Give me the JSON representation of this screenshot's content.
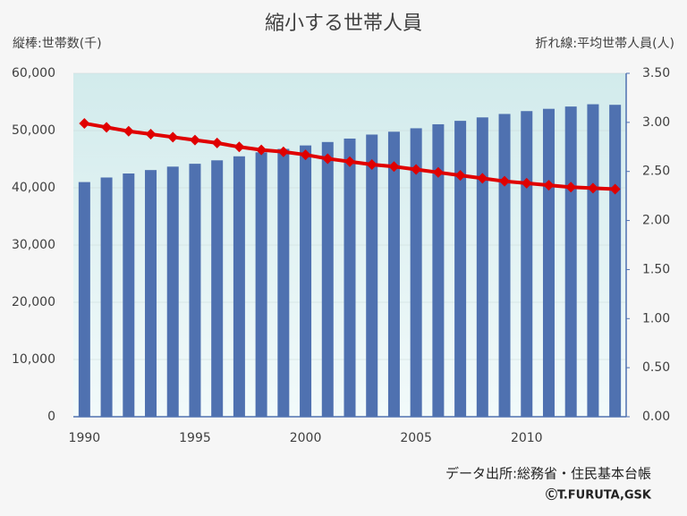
{
  "chart_data": {
    "type": "bar-line",
    "title": "縮小する世帯人員",
    "y_label": "縦棒:世帯数(千)",
    "y2_label": "折れ線:平均世帯人員(人)",
    "source": "データ出所:総務省・住民基本台帳",
    "credit": "ⒸT.FURUTA,GSK",
    "categories": [
      "1990",
      null,
      null,
      null,
      null,
      "1995",
      null,
      null,
      null,
      null,
      "2000",
      null,
      null,
      null,
      null,
      "2005",
      null,
      null,
      null,
      null,
      "2010",
      null,
      null,
      null,
      null
    ],
    "series": [
      {
        "type": "bar",
        "color": "#4f71b0",
        "values": [
          41000,
          41800,
          42500,
          43100,
          43700,
          44200,
          44800,
          45500,
          46200,
          46800,
          47400,
          48000,
          48600,
          49300,
          49800,
          50400,
          51100,
          51700,
          52300,
          52900,
          53400,
          53800,
          54200,
          54600,
          54500
        ]
      },
      {
        "type": "line",
        "axis": "y2",
        "color": "#e00000",
        "values": [
          2.99,
          2.95,
          2.91,
          2.88,
          2.85,
          2.82,
          2.79,
          2.75,
          2.72,
          2.7,
          2.67,
          2.63,
          2.6,
          2.57,
          2.55,
          2.52,
          2.49,
          2.46,
          2.43,
          2.4,
          2.38,
          2.36,
          2.34,
          2.33,
          2.32
        ]
      }
    ],
    "ylim": [
      0,
      60000
    ],
    "yticks": [
      0,
      {
        "value": 10000,
        "label": "10,000"
      },
      {
        "value": 20000,
        "label": "20,000"
      },
      {
        "value": 30000,
        "label": "30,000"
      },
      {
        "value": 40000,
        "label": "40,000"
      },
      {
        "value": 50000,
        "label": "50,000"
      },
      {
        "value": 60000,
        "label": "60,000"
      }
    ],
    "y2lim": [
      0,
      3.5
    ],
    "y2ticks": [
      {
        "value": 0,
        "label": "0.00"
      },
      {
        "value": 0.5,
        "label": "0.50"
      },
      {
        "value": 1,
        "label": "1.00"
      },
      {
        "value": 1.5,
        "label": "1.50"
      },
      {
        "value": 2,
        "label": "2.00"
      },
      {
        "value": 2.5,
        "label": "2.50"
      },
      {
        "value": 3,
        "label": "3.00"
      },
      {
        "value": 3.5,
        "label": "3.50"
      }
    ],
    "grid": true
  }
}
